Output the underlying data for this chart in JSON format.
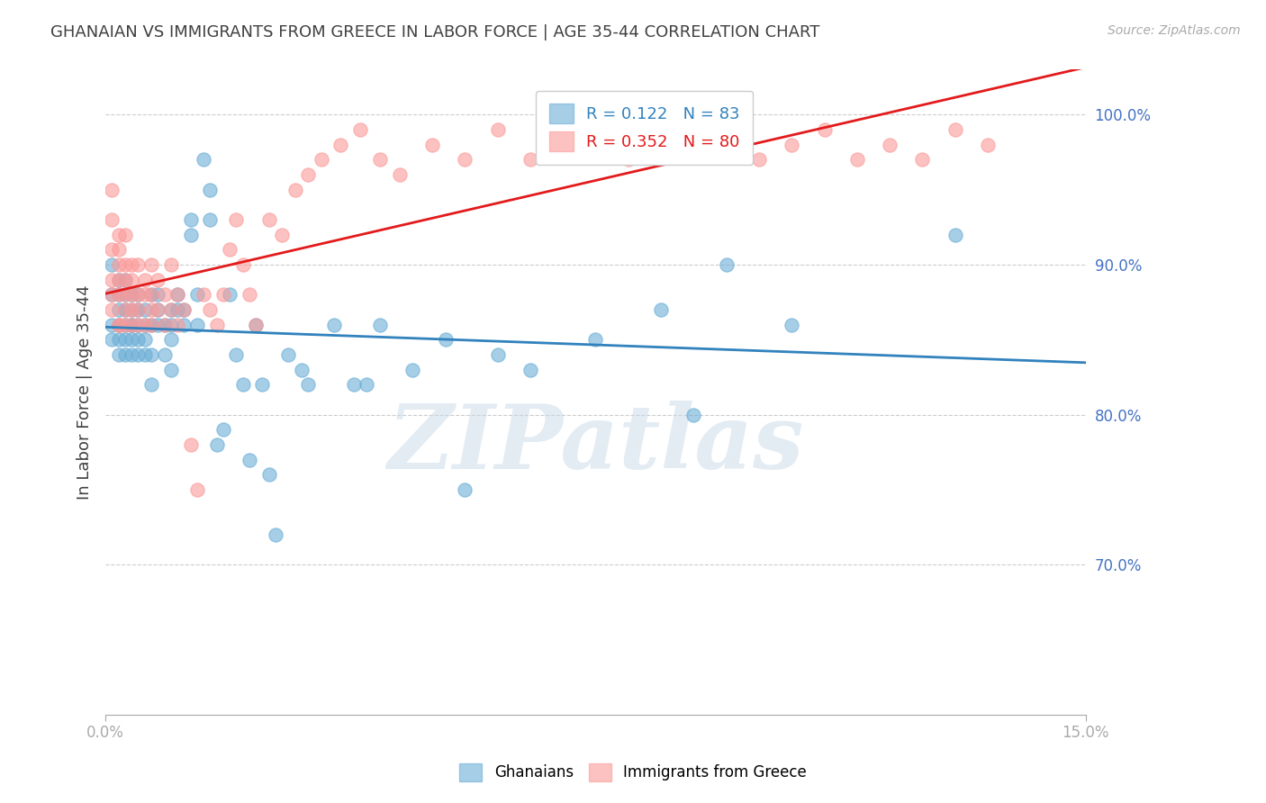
{
  "title": "GHANAIAN VS IMMIGRANTS FROM GREECE IN LABOR FORCE | AGE 35-44 CORRELATION CHART",
  "source": "Source: ZipAtlas.com",
  "xlabel": "",
  "ylabel": "In Labor Force | Age 35-44",
  "xlim": [
    0.0,
    0.15
  ],
  "ylim": [
    0.6,
    1.03
  ],
  "yticks": [
    0.7,
    0.8,
    0.9,
    1.0
  ],
  "ytick_labels": [
    "70.0%",
    "80.0%",
    "90.0%",
    "100.0%"
  ],
  "xticks": [
    0.0,
    0.03,
    0.06,
    0.09,
    0.12,
    0.15
  ],
  "xtick_labels": [
    "0.0%",
    "",
    "",
    "",
    "",
    "15.0%"
  ],
  "legend_blue_r": "R = 0.122",
  "legend_blue_n": "N = 83",
  "legend_pink_r": "R = 0.352",
  "legend_pink_n": "N = 80",
  "blue_color": "#6baed6",
  "pink_color": "#fb9a99",
  "blue_line_color": "#3182bd",
  "pink_line_color": "#e31a1c",
  "watermark": "ZIPatlas",
  "watermark_color": "#c8d8e8",
  "blue_points_x": [
    0.001,
    0.001,
    0.001,
    0.001,
    0.002,
    0.002,
    0.002,
    0.002,
    0.002,
    0.002,
    0.003,
    0.003,
    0.003,
    0.003,
    0.003,
    0.003,
    0.004,
    0.004,
    0.004,
    0.004,
    0.004,
    0.004,
    0.005,
    0.005,
    0.005,
    0.005,
    0.005,
    0.006,
    0.006,
    0.006,
    0.006,
    0.007,
    0.007,
    0.007,
    0.007,
    0.008,
    0.008,
    0.008,
    0.009,
    0.009,
    0.01,
    0.01,
    0.01,
    0.01,
    0.011,
    0.011,
    0.012,
    0.012,
    0.013,
    0.013,
    0.014,
    0.014,
    0.015,
    0.016,
    0.016,
    0.017,
    0.018,
    0.019,
    0.02,
    0.021,
    0.022,
    0.023,
    0.024,
    0.025,
    0.026,
    0.028,
    0.03,
    0.031,
    0.035,
    0.038,
    0.04,
    0.042,
    0.047,
    0.052,
    0.055,
    0.06,
    0.065,
    0.075,
    0.085,
    0.09,
    0.095,
    0.105,
    0.13
  ],
  "blue_points_y": [
    0.86,
    0.88,
    0.9,
    0.85,
    0.87,
    0.89,
    0.86,
    0.84,
    0.88,
    0.85,
    0.87,
    0.89,
    0.86,
    0.88,
    0.85,
    0.84,
    0.87,
    0.86,
    0.88,
    0.85,
    0.84,
    0.86,
    0.87,
    0.85,
    0.86,
    0.88,
    0.84,
    0.87,
    0.86,
    0.85,
    0.84,
    0.88,
    0.86,
    0.84,
    0.82,
    0.87,
    0.86,
    0.88,
    0.86,
    0.84,
    0.87,
    0.86,
    0.85,
    0.83,
    0.87,
    0.88,
    0.86,
    0.87,
    0.93,
    0.92,
    0.88,
    0.86,
    0.97,
    0.95,
    0.93,
    0.78,
    0.79,
    0.88,
    0.84,
    0.82,
    0.77,
    0.86,
    0.82,
    0.76,
    0.72,
    0.84,
    0.83,
    0.82,
    0.86,
    0.82,
    0.82,
    0.86,
    0.83,
    0.85,
    0.75,
    0.84,
    0.83,
    0.85,
    0.87,
    0.8,
    0.9,
    0.86,
    0.92
  ],
  "pink_points_x": [
    0.001,
    0.001,
    0.001,
    0.001,
    0.001,
    0.001,
    0.002,
    0.002,
    0.002,
    0.002,
    0.002,
    0.002,
    0.002,
    0.003,
    0.003,
    0.003,
    0.003,
    0.003,
    0.003,
    0.004,
    0.004,
    0.004,
    0.004,
    0.004,
    0.005,
    0.005,
    0.005,
    0.005,
    0.006,
    0.006,
    0.006,
    0.007,
    0.007,
    0.007,
    0.007,
    0.008,
    0.008,
    0.009,
    0.009,
    0.01,
    0.01,
    0.011,
    0.011,
    0.012,
    0.013,
    0.014,
    0.015,
    0.016,
    0.017,
    0.018,
    0.019,
    0.02,
    0.021,
    0.022,
    0.023,
    0.025,
    0.027,
    0.029,
    0.031,
    0.033,
    0.036,
    0.039,
    0.042,
    0.045,
    0.05,
    0.055,
    0.06,
    0.065,
    0.072,
    0.08,
    0.088,
    0.095,
    0.1,
    0.105,
    0.11,
    0.115,
    0.12,
    0.125,
    0.13,
    0.135
  ],
  "pink_points_y": [
    0.87,
    0.89,
    0.91,
    0.88,
    0.93,
    0.95,
    0.86,
    0.88,
    0.9,
    0.92,
    0.89,
    0.86,
    0.91,
    0.87,
    0.89,
    0.9,
    0.88,
    0.86,
    0.92,
    0.88,
    0.86,
    0.9,
    0.87,
    0.89,
    0.88,
    0.9,
    0.86,
    0.87,
    0.86,
    0.88,
    0.89,
    0.87,
    0.9,
    0.86,
    0.88,
    0.87,
    0.89,
    0.86,
    0.88,
    0.9,
    0.87,
    0.86,
    0.88,
    0.87,
    0.78,
    0.75,
    0.88,
    0.87,
    0.86,
    0.88,
    0.91,
    0.93,
    0.9,
    0.88,
    0.86,
    0.93,
    0.92,
    0.95,
    0.96,
    0.97,
    0.98,
    0.99,
    0.97,
    0.96,
    0.98,
    0.97,
    0.99,
    0.97,
    0.98,
    0.97,
    0.99,
    0.98,
    0.97,
    0.98,
    0.99,
    0.97,
    0.98,
    0.97,
    0.99,
    0.98
  ],
  "background_color": "#ffffff",
  "grid_color": "#cccccc",
  "tick_color": "#4472c4",
  "title_color": "#404040",
  "axis_label_color": "#404040"
}
